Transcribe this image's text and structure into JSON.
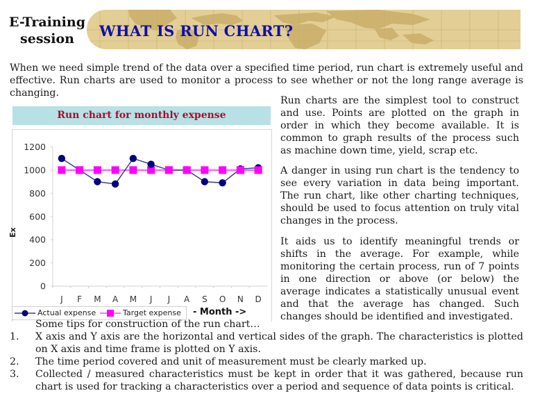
{
  "header": {
    "brand_line1": "E-Training",
    "brand_line2": "session",
    "title": "WHAT IS RUN CHART?"
  },
  "intro": "When we need simple trend of the data over a specified time period, run chart is extremely useful and effective. Run charts are used to monitor a process to see whether or not the long range average is changing.",
  "right_column": {
    "p1": "Run charts are the simplest tool to construct and use. Points are plotted on the graph in order in which they become available. It is common to graph results of the process such as machine down time, yield, scrap etc.",
    "p2": "A danger in using run chart is the tendency to see every variation in data being important. The run chart, like other charting techniques, should be used to focus attention on truly vital changes in the process.",
    "p3": "It aids us to identify meaningful trends or shifts  in the average. For example, while monitoring the certain process, run of 7 points in one direction or above (or below) the average indicates a statistically unusual event and that the average has changed. Such changes should be identified  and investigated."
  },
  "chart": {
    "title": "Run chart for monthly expense",
    "ylabel_fragment": "Ex",
    "xlabel": "- Month ->",
    "legend": {
      "actual": "Actual expense",
      "target": "Target expense"
    },
    "colors": {
      "actual": "#000080",
      "actual_line": "#3c3c8c",
      "target": "#ff00ff",
      "title_bg": "#b7e1e5",
      "title_text": "#a3102e"
    }
  },
  "chart_data": {
    "type": "line",
    "title": "Run chart for monthly expense",
    "xlabel": "- Month ->",
    "ylabel": "",
    "categories": [
      "J",
      "F",
      "M",
      "A",
      "M",
      "J",
      "J",
      "A",
      "S",
      "O",
      "N",
      "D"
    ],
    "series": [
      {
        "name": "Actual expense",
        "values": [
          1100,
          1000,
          900,
          880,
          1100,
          1050,
          1000,
          1000,
          900,
          890,
          1010,
          1020
        ],
        "marker": "circle",
        "color": "#000080"
      },
      {
        "name": "Target expense",
        "values": [
          1000,
          1000,
          1000,
          1000,
          1000,
          1000,
          1000,
          1000,
          1000,
          1000,
          1000,
          1000
        ],
        "marker": "square",
        "color": "#ff00ff"
      }
    ],
    "yticks": [
      0,
      200,
      400,
      600,
      800,
      1000,
      1200
    ],
    "ylim": [
      0,
      1200
    ],
    "grid": false,
    "legend_position": "bottom-left"
  },
  "tips": {
    "heading": "Some tips for construction of the run chart…",
    "items": [
      {
        "num": "1.",
        "text": "X axis and Y axis are the horizontal and vertical sides of the graph. The characteristics is plotted on X axis and time frame is plotted on Y axis."
      },
      {
        "num": "2.",
        "text": "The time period covered and unit of measurement must be clearly marked up."
      },
      {
        "num": "3.",
        "text": "Collected / measured characteristics must be kept in order that it was gathered, because run chart is used for tracking a characteristics over a period and sequence of data points is critical."
      }
    ]
  }
}
